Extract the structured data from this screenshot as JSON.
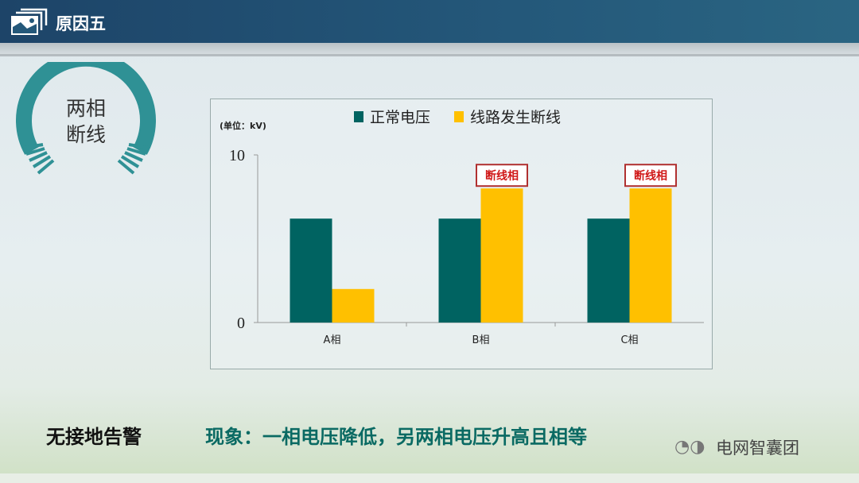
{
  "header": {
    "title": "原因五",
    "icon": "picture-frame-icon"
  },
  "badge": {
    "line1": "两相",
    "line2": "断线"
  },
  "chart_data": {
    "type": "bar",
    "categories": [
      "A相",
      "B相",
      "C相"
    ],
    "series": [
      {
        "name": "正常电压",
        "values": [
          6.2,
          6.2,
          6.2
        ],
        "color": "#006361"
      },
      {
        "name": "线路发生断线",
        "values": [
          2.0,
          8.0,
          8.0
        ],
        "color": "#ffc000"
      }
    ],
    "unit_label": "(单位：kV)",
    "yticks": [
      0,
      10
    ],
    "ylim": [
      0,
      10
    ],
    "legend": "top",
    "grid": false,
    "annotations": [
      {
        "category": "B相",
        "series": "线路发生断线",
        "text": "断线相"
      },
      {
        "category": "C相",
        "series": "线路发生断线",
        "text": "断线相"
      }
    ]
  },
  "footer": {
    "left": "无接地告警",
    "right": "现象：一相电压降低，另两相电压升高且相等"
  },
  "watermark": {
    "text": "电网智囊团",
    "icon": "wechat-icon"
  }
}
